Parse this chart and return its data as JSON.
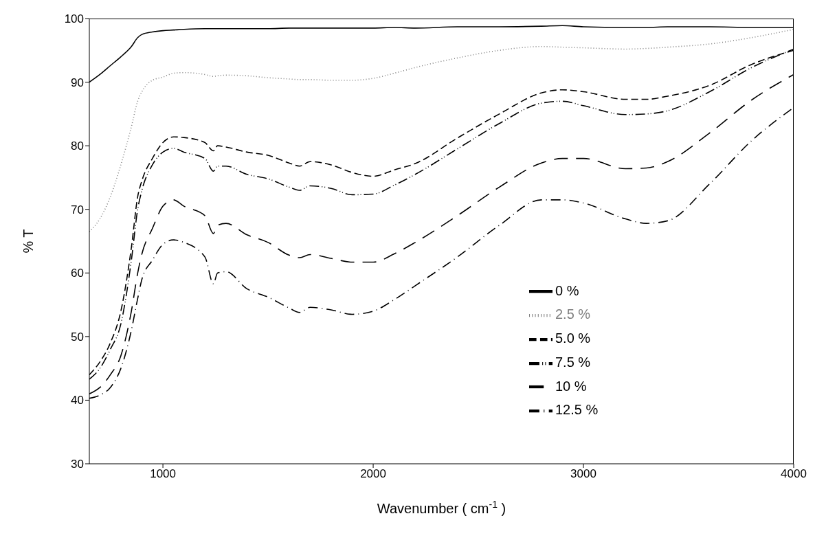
{
  "chart_data": {
    "type": "line",
    "xlabel": "Wavenumber ( cm$^{-1}$ )",
    "ylabel": "% T",
    "x": [
      650,
      700,
      750,
      800,
      850,
      880,
      900,
      950,
      1000,
      1050,
      1100,
      1200,
      1240,
      1260,
      1300,
      1400,
      1500,
      1600,
      1650,
      1700,
      1800,
      1900,
      2000,
      2100,
      2200,
      2400,
      2600,
      2800,
      2900,
      3000,
      3200,
      3300,
      3400,
      3600,
      3800,
      4000
    ],
    "xlim": [
      650,
      4000
    ],
    "xticks": [
      1000,
      2000,
      3000,
      4000
    ],
    "ylim": [
      30,
      100
    ],
    "yticks": [
      30,
      40,
      50,
      60,
      70,
      80,
      90,
      100
    ],
    "grid": false,
    "legend": "bottom right",
    "marker": "none",
    "series": [
      {
        "name": "0 %",
        "color": "#000000",
        "line_style": "solid",
        "values": [
          90,
          91.2,
          92.6,
          94,
          95.6,
          97,
          97.5,
          97.9,
          98.1,
          98.2,
          98.3,
          98.4,
          98.4,
          98.4,
          98.4,
          98.4,
          98.4,
          98.5,
          98.5,
          98.5,
          98.5,
          98.5,
          98.5,
          98.6,
          98.5,
          98.7,
          98.7,
          98.8,
          98.9,
          98.7,
          98.6,
          98.6,
          98.7,
          98.7,
          98.6,
          98.6
        ]
      },
      {
        "name": "2.5 %",
        "color": "#808080",
        "line_style": "dotted",
        "values": [
          66.5,
          68.5,
          72,
          77,
          83,
          87,
          88.5,
          90.3,
          90.8,
          91.4,
          91.5,
          91.2,
          90.9,
          91,
          91.1,
          91,
          90.7,
          90.5,
          90.4,
          90.4,
          90.3,
          90.3,
          90.6,
          91.4,
          92.3,
          93.8,
          95,
          95.6,
          95.5,
          95.4,
          95.2,
          95.3,
          95.5,
          96,
          97,
          98.3
        ]
      },
      {
        "name": "5.0 %",
        "color": "#000000",
        "line_style": "dashed",
        "values": [
          44,
          46,
          49,
          54,
          64,
          72,
          74.5,
          78,
          80.5,
          81.4,
          81.3,
          80.5,
          79.2,
          80,
          79.8,
          79,
          78.5,
          77.3,
          76.8,
          77.5,
          77,
          75.8,
          75.2,
          76.2,
          77.2,
          81.2,
          85,
          88.3,
          88.8,
          88.5,
          87.3,
          87.3,
          87.8,
          89.5,
          92.8,
          95
        ]
      },
      {
        "name": "7.5 %",
        "color": "#000000",
        "line_style": "dashed",
        "values": [
          43.3,
          45,
          48,
          52,
          62,
          70,
          73,
          77,
          79,
          79.6,
          79,
          78,
          76,
          76.8,
          76.8,
          75.5,
          74.8,
          73.5,
          73,
          73.7,
          73.3,
          72.3,
          72.4,
          73.8,
          75.5,
          79.5,
          83.5,
          86.7,
          87,
          86.3,
          84.9,
          85,
          85.5,
          88.5,
          92.3,
          95.2
        ]
      },
      {
        "name": "10 %",
        "color": "#000000",
        "line_style": "dashed",
        "values": [
          41,
          42,
          44,
          47,
          54,
          60,
          63,
          67,
          70.5,
          71.5,
          70.5,
          69,
          66.2,
          67.5,
          67.8,
          66,
          64.8,
          62.8,
          62.4,
          62.9,
          62.3,
          61.7,
          61.7,
          63,
          64.8,
          69,
          73.5,
          77.3,
          78,
          78,
          76.4,
          76.5,
          77.5,
          82,
          87.2,
          91.2
        ]
      },
      {
        "name": "12.5 %",
        "color": "#000000",
        "line_style": "dashed",
        "values": [
          40.3,
          40.8,
          42,
          45,
          51,
          56,
          59,
          62,
          64.5,
          65.2,
          64.8,
          62.5,
          58.3,
          60,
          60.2,
          57.5,
          56.2,
          54.5,
          53.8,
          54.6,
          54.2,
          53.5,
          54,
          55.8,
          58,
          62.5,
          67.5,
          71.5,
          71.5,
          71,
          68.5,
          67.8,
          68.2,
          74,
          80.8,
          86
        ]
      }
    ]
  }
}
